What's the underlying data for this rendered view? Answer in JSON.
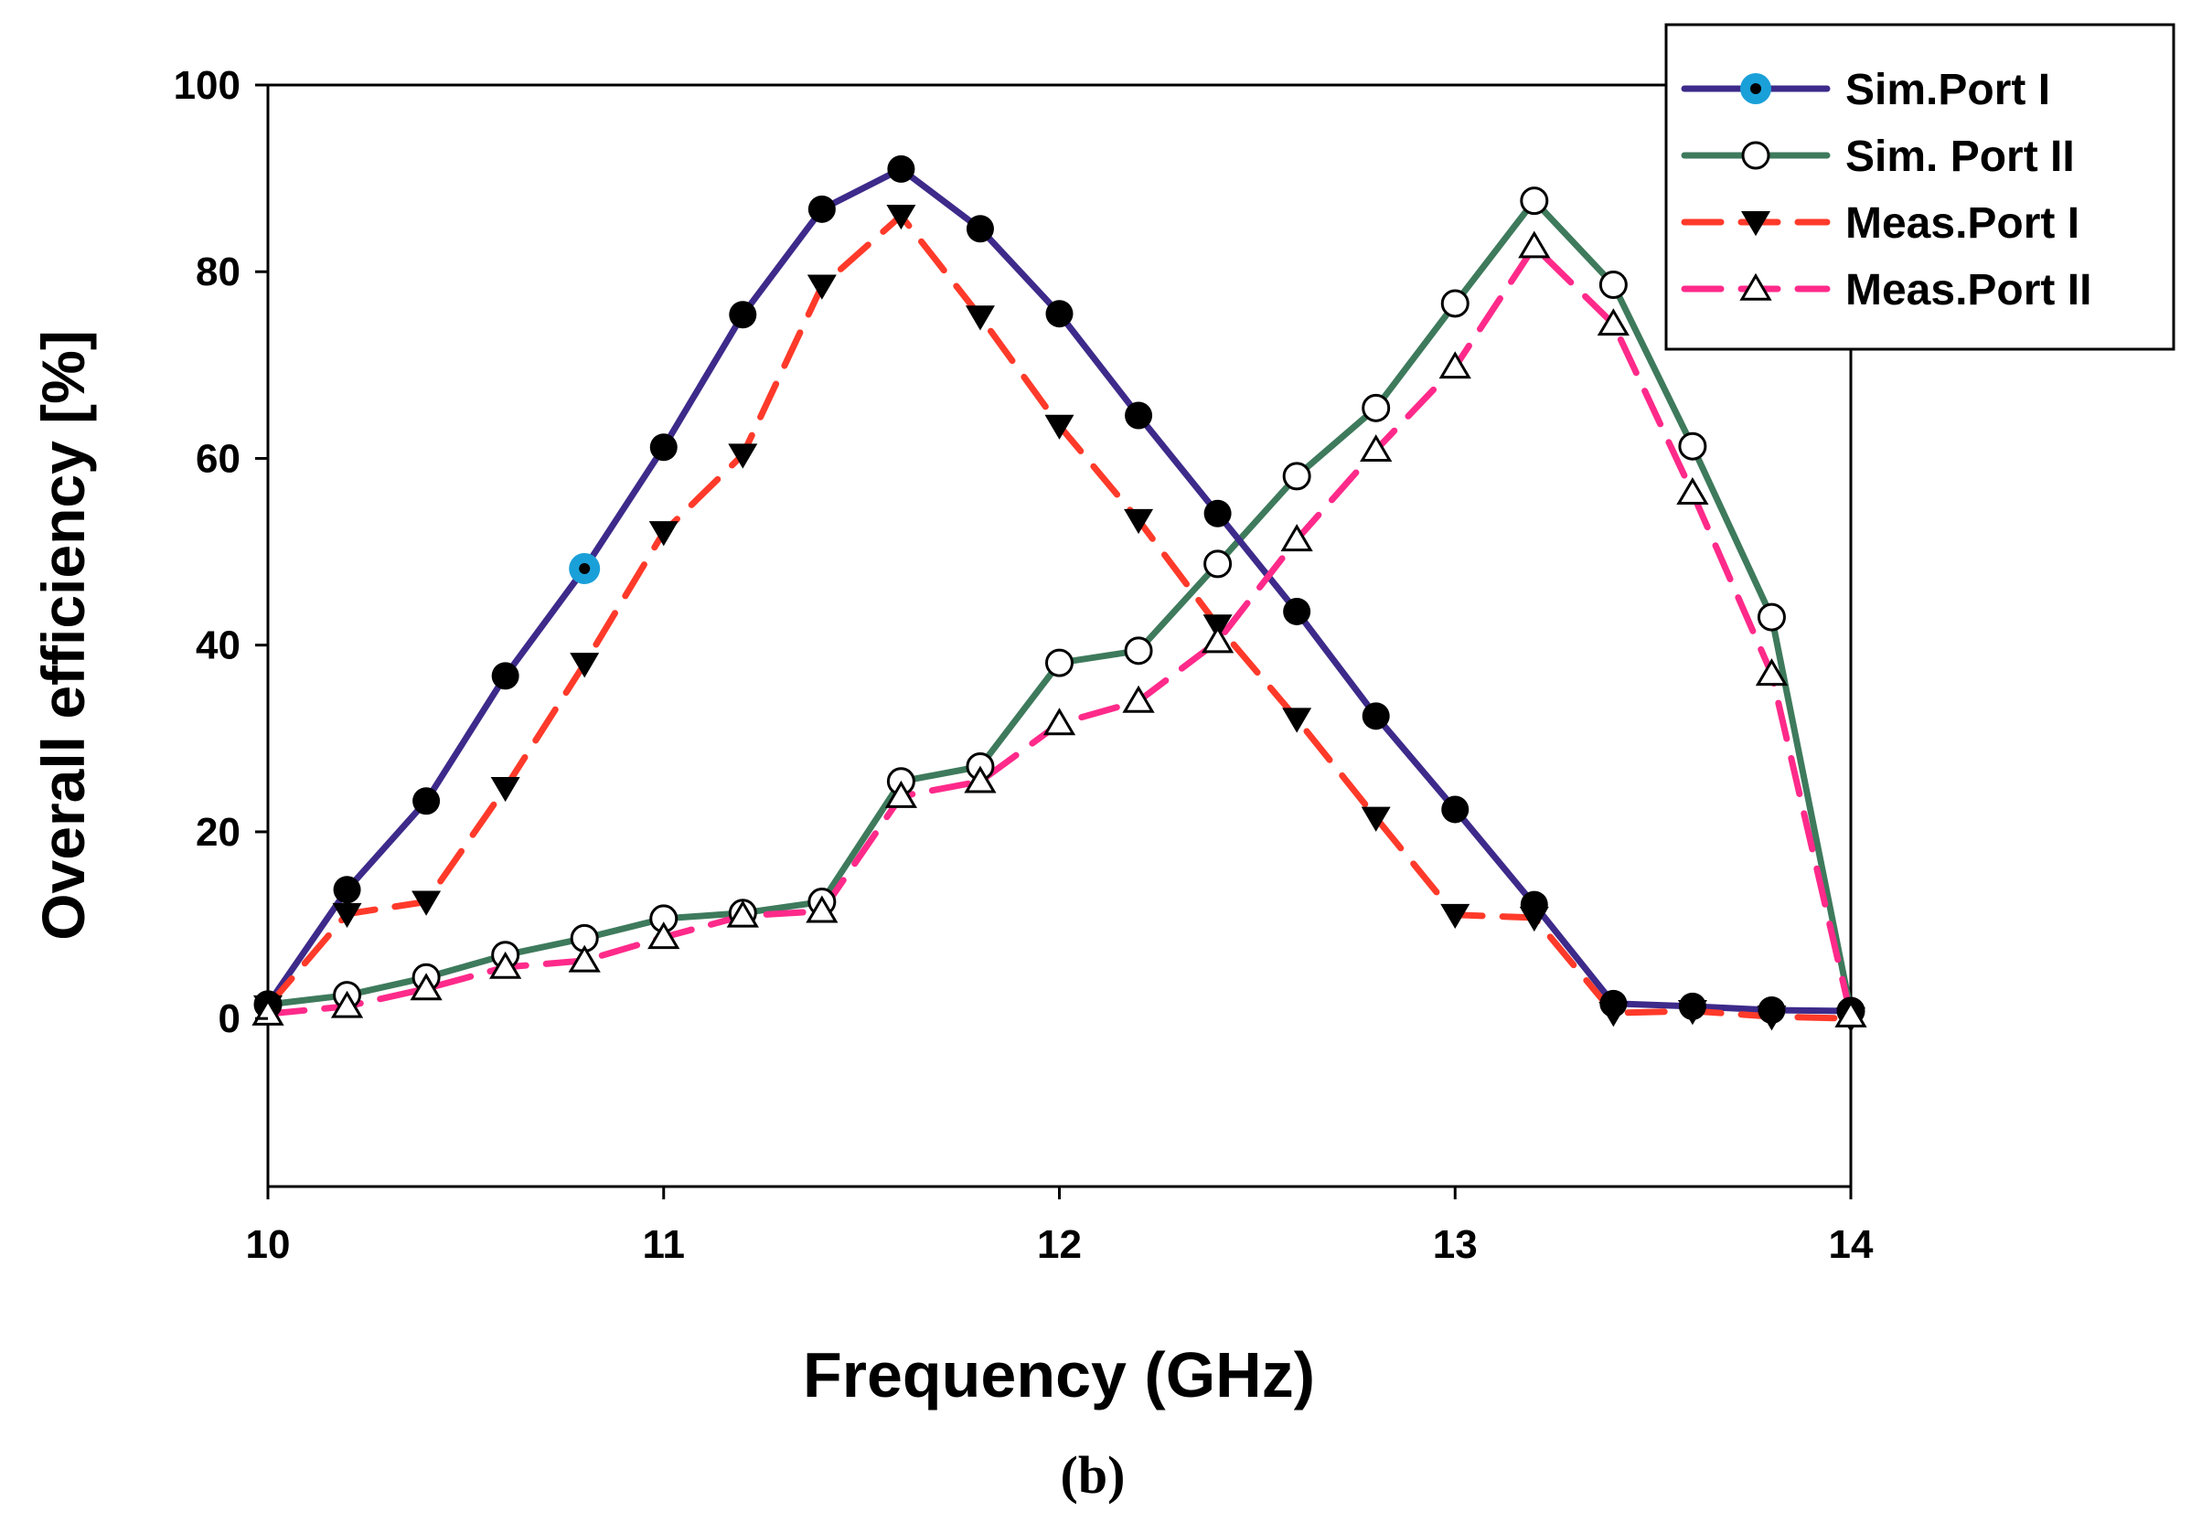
{
  "chart_data": {
    "type": "line",
    "title": "",
    "xlabel": "Frequency (GHz)",
    "ylabel": "Overall efficiency [%]",
    "caption": "(b)",
    "xlim": [
      10,
      14
    ],
    "ylim": [
      -18,
      100
    ],
    "xticks": [
      "10",
      "11",
      "12",
      "13",
      "14"
    ],
    "yticks": [
      "0",
      "20",
      "40",
      "60",
      "80",
      "100"
    ],
    "grid": false,
    "legend_position": "top-right",
    "x": [
      10.0,
      10.2,
      10.4,
      10.6,
      10.8,
      11.0,
      11.2,
      11.4,
      11.6,
      11.8,
      12.0,
      12.2,
      12.4,
      12.6,
      12.8,
      13.0,
      13.2,
      13.4,
      13.6,
      13.8,
      14.0
    ],
    "series": [
      {
        "name": "Sim.Port I",
        "color": "#3d2a8a",
        "style": "solid",
        "marker": "filled-circle",
        "highlight_color": "#1aa0d8",
        "highlight_x": 10.8,
        "values": [
          1.5,
          13.8,
          23.3,
          36.7,
          48.2,
          61.2,
          75.4,
          86.7,
          91.0,
          84.6,
          75.5,
          64.6,
          54.1,
          43.6,
          32.4,
          22.4,
          12.2,
          1.6,
          1.3,
          0.9,
          0.8
        ]
      },
      {
        "name": "Sim. Port II",
        "color": "#3e7a5c",
        "style": "solid",
        "marker": "open-circle",
        "values": [
          1.5,
          2.5,
          4.4,
          6.8,
          8.6,
          10.7,
          11.3,
          12.5,
          25.4,
          27.0,
          38.1,
          39.4,
          48.7,
          58.1,
          65.4,
          76.6,
          87.6,
          78.6,
          61.3,
          43.0,
          0.8
        ]
      },
      {
        "name": "Meas.Port I",
        "color": "#ff3a2a",
        "style": "dashed",
        "marker": "filled-triangle-down",
        "values": [
          1.3,
          11.2,
          12.5,
          24.7,
          38.0,
          52.1,
          60.4,
          78.5,
          86.0,
          75.2,
          63.5,
          53.4,
          42.1,
          32.1,
          21.5,
          11.1,
          10.8,
          0.6,
          0.8,
          0.2,
          0.0
        ]
      },
      {
        "name": "Meas.Port II",
        "color": "#ff2a8a",
        "style": "dashed",
        "marker": "open-triangle-up",
        "values": [
          0.5,
          1.3,
          3.2,
          5.5,
          6.2,
          8.7,
          11.0,
          11.5,
          23.8,
          25.4,
          31.6,
          34.0,
          40.4,
          51.3,
          60.9,
          69.8,
          82.7,
          74.4,
          56.3,
          36.9,
          0.3
        ]
      }
    ]
  }
}
